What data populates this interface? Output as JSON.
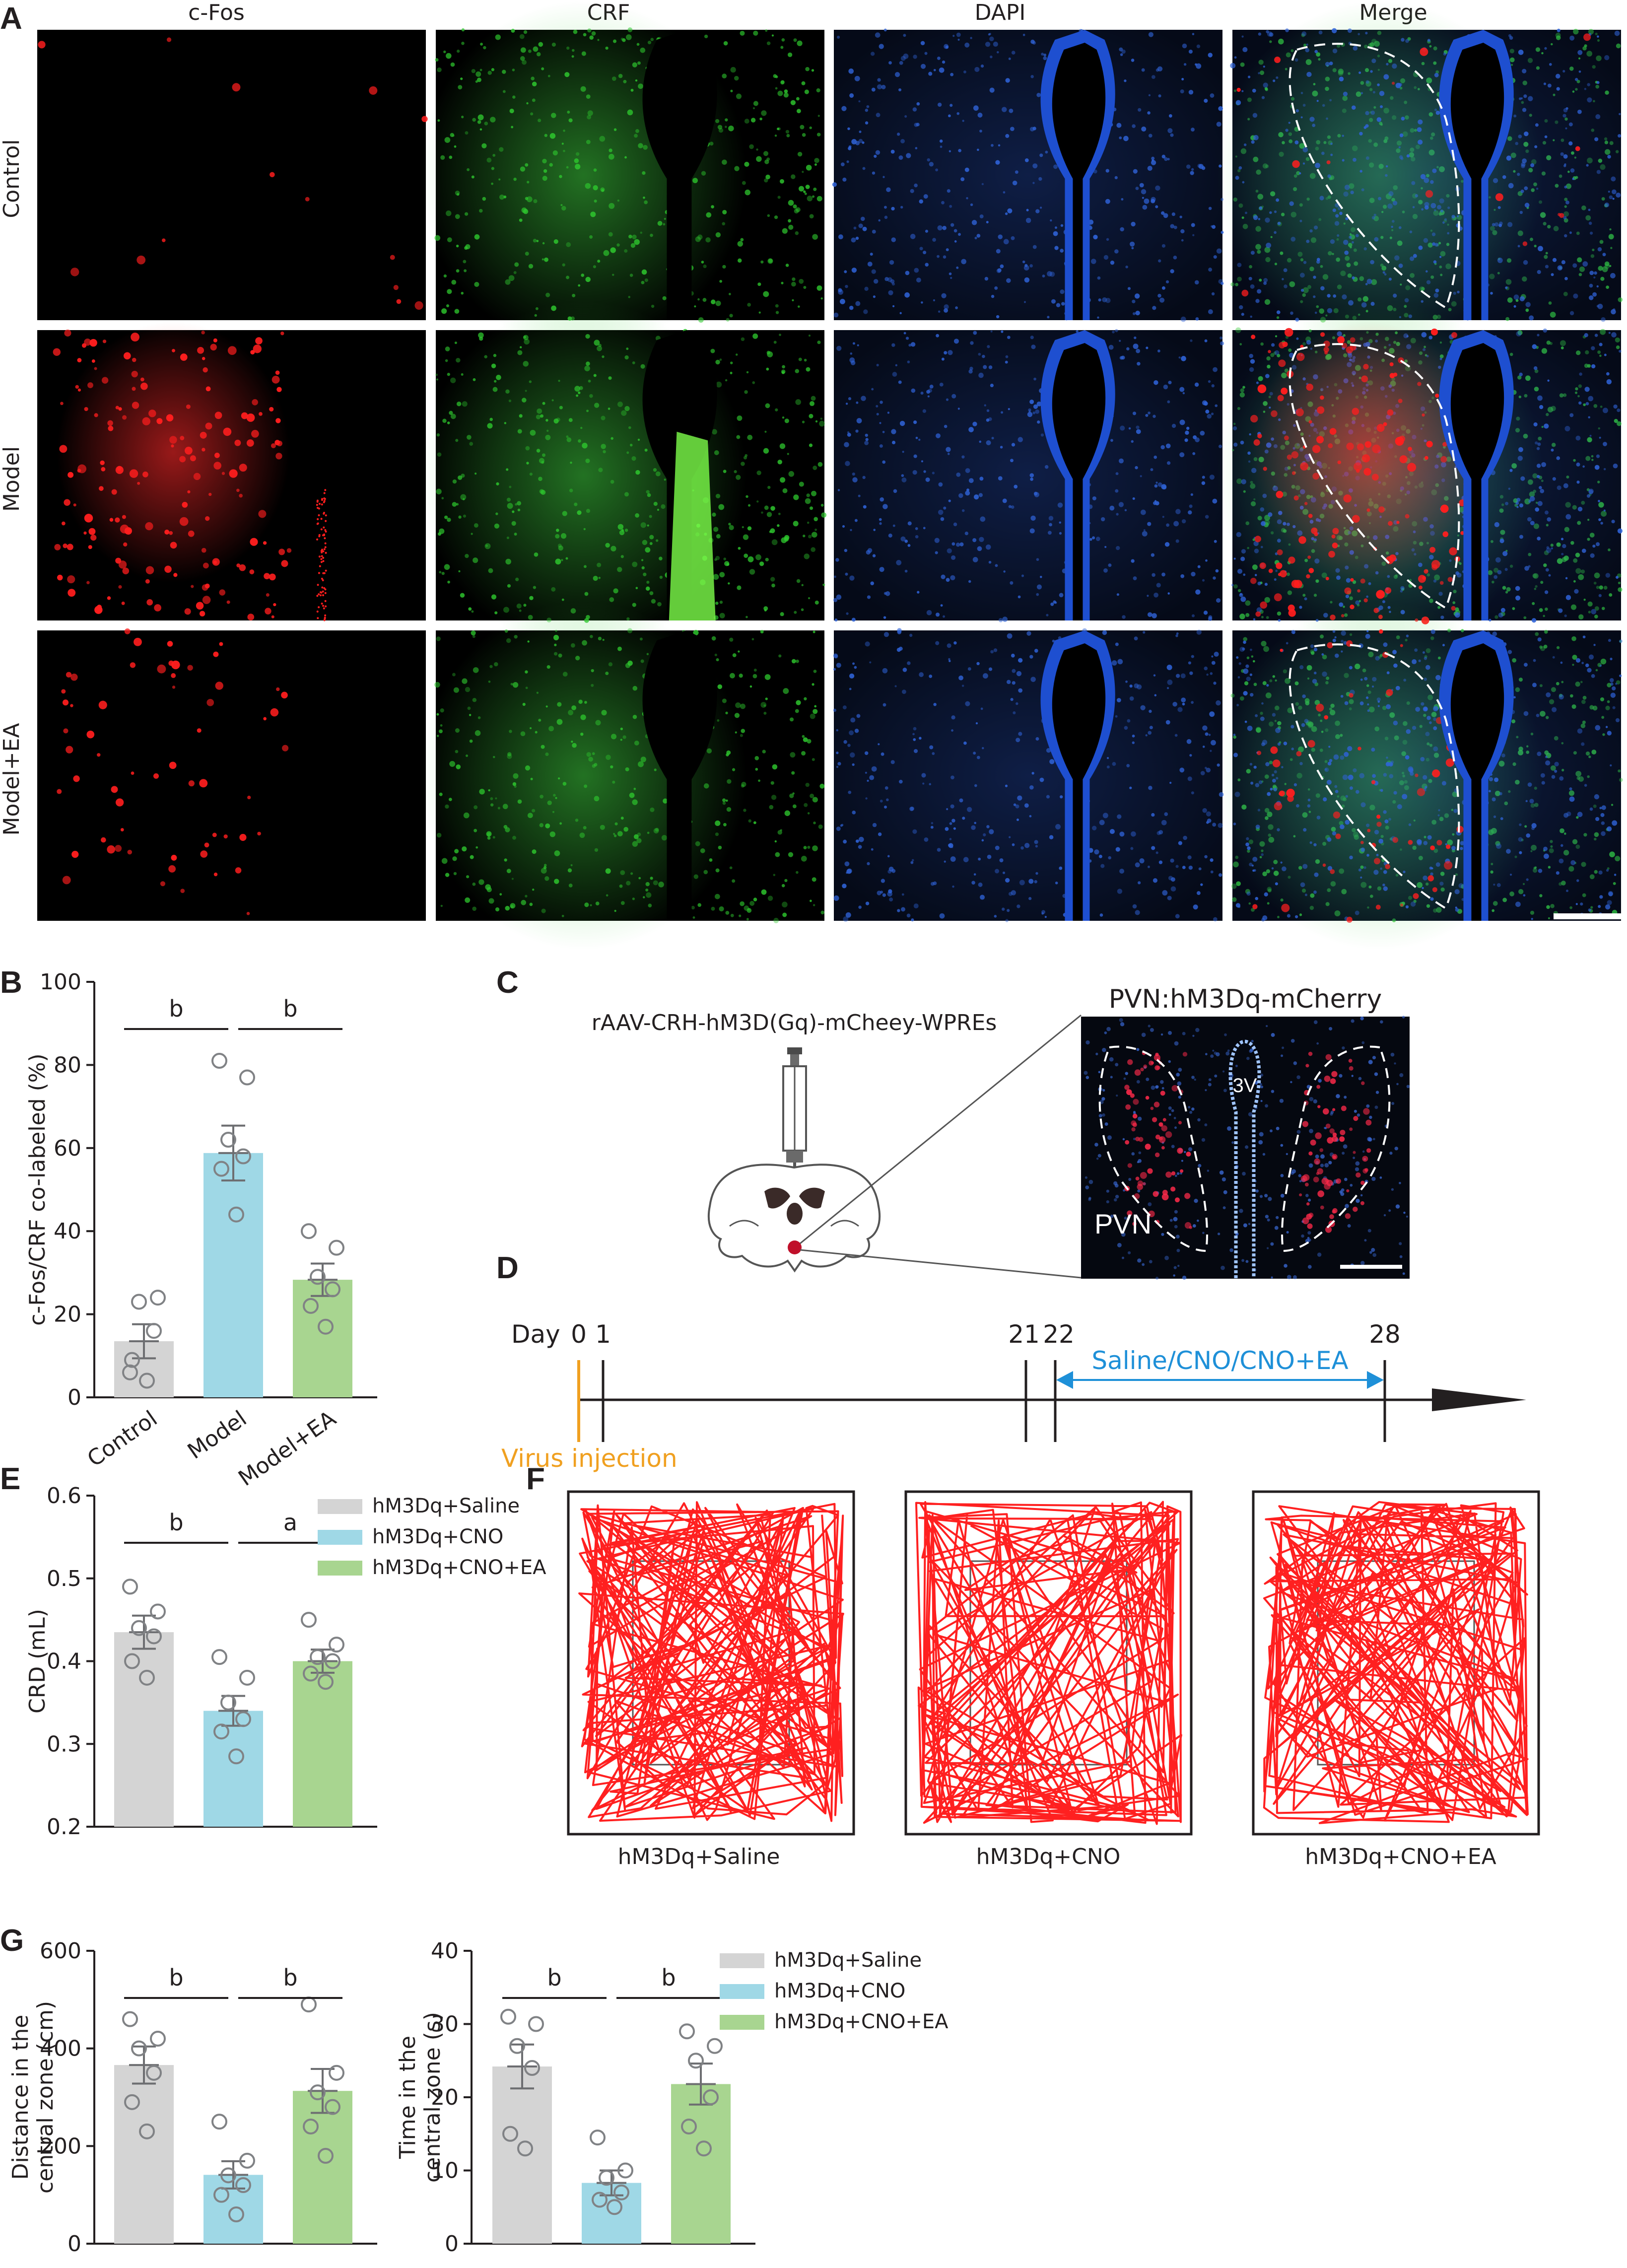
{
  "panel_labels": [
    "A",
    "B",
    "C",
    "D",
    "E",
    "F",
    "G"
  ],
  "colors": {
    "control_gray": "#d4d4d4",
    "model_cyan": "#9fd8e6",
    "model_ea_green": "#a8d590",
    "track_red": "#ff2020",
    "timeline_blue": "#1e90d8",
    "timeline_orange": "#f0a020",
    "cfos_red": "#ff1e1e",
    "crf_green": "#2ec82e",
    "dapi_blue": "#2f63d8"
  },
  "panel_a": {
    "column_headers": [
      "c-Fos",
      "CRF",
      "DAPI",
      "Merge"
    ],
    "row_labels": [
      "Control",
      "Model",
      "Model+EA"
    ]
  },
  "panel_c": {
    "virus_label": "rAAV-CRH-hM3D(Gq)-mCheey-WPREs",
    "image_title": "PVN:hM3Dq-mCherry",
    "pvn_label": "PVN",
    "ventricle_label": "3V"
  },
  "panel_d": {
    "day_label": "Day",
    "ticks": [
      "0",
      "1",
      "21",
      "22",
      "28"
    ],
    "treatment_label": "Saline/CNO/CNO+EA",
    "injection_label": "Virus injection"
  },
  "panel_f": {
    "titles": [
      "hM3Dq+Saline",
      "hM3Dq+CNO",
      "hM3Dq+CNO+EA"
    ]
  },
  "chart_data": [
    {
      "id": "B",
      "type": "bar",
      "categories": [
        "Control",
        "Model",
        "Model+EA"
      ],
      "values": [
        13.5,
        58.8,
        28.3
      ],
      "errors": [
        4.1,
        6.6,
        3.9
      ],
      "points": [
        [
          6,
          24,
          23,
          16,
          9,
          4
        ],
        [
          81,
          77,
          62,
          58,
          55,
          44
        ],
        [
          40,
          36,
          29,
          26,
          22,
          17
        ]
      ],
      "ylabel": "c-Fos/CRF co-labeled (%)",
      "ylim": [
        0,
        100
      ],
      "yticks": [
        0,
        20,
        40,
        60,
        80,
        100
      ],
      "significance": [
        {
          "from": 0,
          "to": 1,
          "label": "b"
        },
        {
          "from": 1,
          "to": 2,
          "label": "b"
        }
      ],
      "rotate_x_labels": true
    },
    {
      "id": "E",
      "type": "bar",
      "categories": [
        "hM3Dq+Saline",
        "hM3Dq+CNO",
        "hM3Dq+CNO+EA"
      ],
      "values": [
        0.435,
        0.34,
        0.4
      ],
      "errors": [
        0.02,
        0.018,
        0.014
      ],
      "points": [
        [
          0.49,
          0.46,
          0.44,
          0.43,
          0.4,
          0.38
        ],
        [
          0.405,
          0.38,
          0.35,
          0.33,
          0.315,
          0.285
        ],
        [
          0.45,
          0.42,
          0.405,
          0.4,
          0.385,
          0.375
        ]
      ],
      "ylabel": "CRD (mL)",
      "ylim": [
        0.2,
        0.6
      ],
      "yticks": [
        0.2,
        0.3,
        0.4,
        0.5,
        0.6
      ],
      "significance": [
        {
          "from": 0,
          "to": 1,
          "label": "b"
        },
        {
          "from": 1,
          "to": 2,
          "label": "a"
        }
      ],
      "legend": [
        "hM3Dq+Saline",
        "hM3Dq+CNO",
        "hM3Dq+CNO+EA"
      ]
    },
    {
      "id": "G1",
      "type": "bar",
      "categories": [
        "hM3Dq+Saline",
        "hM3Dq+CNO",
        "hM3Dq+CNO+EA"
      ],
      "values": [
        366,
        141,
        313
      ],
      "errors": [
        38,
        28,
        45
      ],
      "points": [
        [
          460,
          420,
          400,
          350,
          290,
          230
        ],
        [
          250,
          170,
          140,
          120,
          100,
          60
        ],
        [
          490,
          350,
          310,
          280,
          240,
          180
        ]
      ],
      "ylabel": "Distance in the central zone (cm)",
      "ylim": [
        0,
        600
      ],
      "yticks": [
        0,
        200,
        400,
        600
      ],
      "significance": [
        {
          "from": 0,
          "to": 1,
          "label": "b"
        },
        {
          "from": 1,
          "to": 2,
          "label": "b"
        }
      ]
    },
    {
      "id": "G2",
      "type": "bar",
      "categories": [
        "hM3Dq+Saline",
        "hM3Dq+CNO",
        "hM3Dq+CNO+EA"
      ],
      "values": [
        24.2,
        8.3,
        21.8
      ],
      "errors": [
        3.0,
        1.7,
        2.8
      ],
      "points": [
        [
          31,
          30,
          27,
          24,
          15,
          13
        ],
        [
          14.5,
          10,
          9,
          7,
          6,
          5
        ],
        [
          29,
          27,
          25,
          20,
          16,
          13
        ]
      ],
      "ylabel": "Time in the central zone (s)",
      "ylim": [
        0,
        40
      ],
      "yticks": [
        0,
        10,
        20,
        30,
        40
      ],
      "significance": [
        {
          "from": 0,
          "to": 1,
          "label": "b"
        },
        {
          "from": 1,
          "to": 2,
          "label": "b"
        }
      ],
      "legend": [
        "hM3Dq+Saline",
        "hM3Dq+CNO",
        "hM3Dq+CNO+EA"
      ]
    }
  ]
}
